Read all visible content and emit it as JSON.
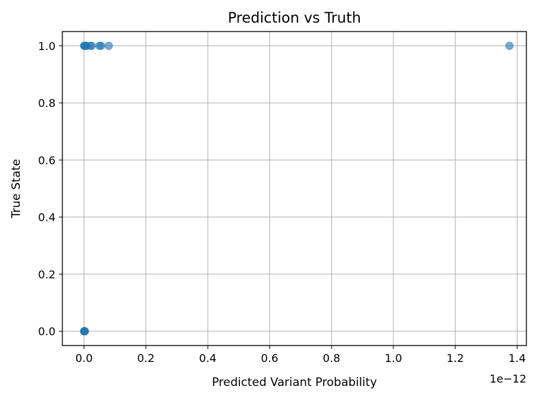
{
  "chart_data": {
    "type": "scatter",
    "title": "Prediction vs Truth",
    "xlabel": "Predicted Variant Probability",
    "ylabel": "True State",
    "x_offset_label": "1e−12",
    "x_scale_factor": 1e-12,
    "xlim": [
      -7e-14,
      1.43e-12
    ],
    "ylim": [
      -0.05,
      1.05
    ],
    "x_ticks": [
      0,
      2e-13,
      4e-13,
      6e-13,
      8e-13,
      1e-12,
      1.2e-12,
      1.4e-12
    ],
    "x_tick_labels": [
      "0.0",
      "0.2",
      "0.4",
      "0.6",
      "0.8",
      "1.0",
      "1.2",
      "1.4"
    ],
    "y_ticks": [
      0,
      0.2,
      0.4,
      0.6,
      0.8,
      1.0
    ],
    "y_tick_labels": [
      "0.0",
      "0.2",
      "0.4",
      "0.6",
      "0.8",
      "1.0"
    ],
    "grid": true,
    "point_color": "#1f77b4",
    "points": [
      {
        "x": 0,
        "y": 1
      },
      {
        "x": 2e-15,
        "y": 1
      },
      {
        "x": 5e-15,
        "y": 1
      },
      {
        "x": 8e-15,
        "y": 1
      },
      {
        "x": 2e-14,
        "y": 1
      },
      {
        "x": 2.5e-14,
        "y": 1
      },
      {
        "x": 5e-14,
        "y": 1
      },
      {
        "x": 5.5e-14,
        "y": 1
      },
      {
        "x": 8e-14,
        "y": 1
      },
      {
        "x": 1.375e-12,
        "y": 1
      },
      {
        "x": 0,
        "y": 0
      },
      {
        "x": 1e-15,
        "y": 0
      },
      {
        "x": 2e-15,
        "y": 0
      },
      {
        "x": 3e-15,
        "y": 0
      }
    ]
  }
}
